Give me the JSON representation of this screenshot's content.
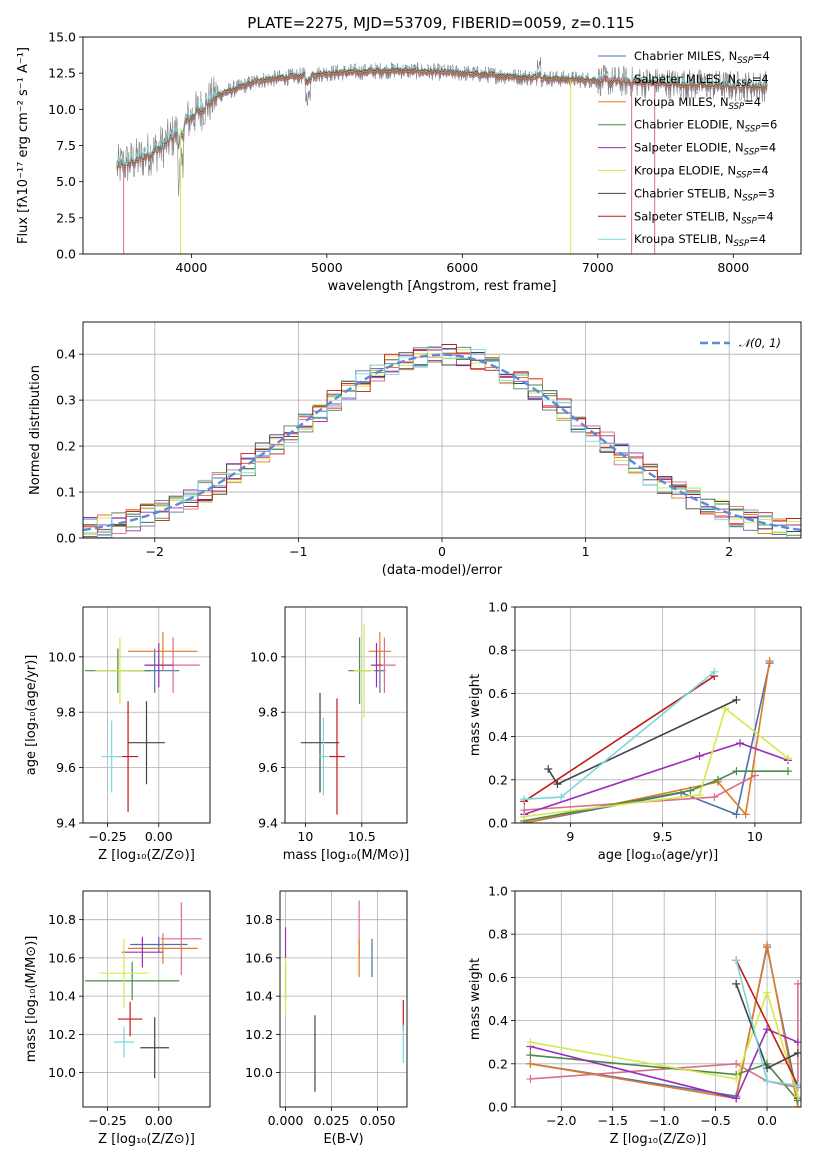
{
  "figure": {
    "title": "PLATE=2275, MJD=53709, FIBERID=0059, z=0.115"
  },
  "series": [
    {
      "name": "Chabrier MILES",
      "suffix": "=4",
      "color": "#4c72b0"
    },
    {
      "name": "Salpeter MILES",
      "suffix": "=4",
      "color": "#dd6e86"
    },
    {
      "name": "Kroupa MILES",
      "suffix": "=4",
      "color": "#e07b28"
    },
    {
      "name": "Chabrier ELODIE",
      "suffix": "=6",
      "color": "#4a8a4a"
    },
    {
      "name": "Salpeter ELODIE",
      "suffix": "=4",
      "color": "#9a2fb5"
    },
    {
      "name": "Kroupa ELODIE",
      "suffix": "=4",
      "color": "#d7e84a"
    },
    {
      "name": "Chabrier STELIB",
      "suffix": "=3",
      "color": "#444444"
    },
    {
      "name": "Salpeter STELIB",
      "suffix": "=4",
      "color": "#c21a1a"
    },
    {
      "name": "Kroupa STELIB",
      "suffix": "=4",
      "color": "#79d8db"
    }
  ],
  "chart_data": [
    {
      "id": "spectrum",
      "type": "line",
      "xlabel": "wavelength [Angstrom, rest frame]",
      "ylabel": "Flux [fλ10⁻¹⁷ erg cm⁻² s⁻¹ A⁻¹]",
      "xlim": [
        3200,
        8500
      ],
      "ylim": [
        0,
        15
      ],
      "xticks": [
        4000,
        5000,
        6000,
        7000,
        8000
      ],
      "yticks": [
        0.0,
        2.5,
        5.0,
        7.5,
        10.0,
        12.5,
        15.0
      ],
      "legend": "upper-right",
      "data_color": "#7f7f7f",
      "data_range": [
        3450,
        8250
      ],
      "continuum": [
        [
          3450,
          6.0
        ],
        [
          3600,
          6.5
        ],
        [
          3800,
          7.5
        ],
        [
          4000,
          9.5
        ],
        [
          4200,
          11.0
        ],
        [
          4500,
          12.0
        ],
        [
          5000,
          12.5
        ],
        [
          5500,
          12.7
        ],
        [
          6000,
          12.5
        ],
        [
          6500,
          12.2
        ],
        [
          7000,
          12.0
        ],
        [
          7500,
          11.8
        ],
        [
          8000,
          11.6
        ],
        [
          8250,
          11.6
        ]
      ],
      "model_cutoffs": [
        {
          "wavelength": 3920,
          "series": "Kroupa ELODIE"
        },
        {
          "wavelength": 3500,
          "series": "Salpeter MILES"
        },
        {
          "wavelength": 6800,
          "series": "Kroupa ELODIE"
        },
        {
          "wavelength": 7250,
          "series": "Salpeter MILES"
        },
        {
          "wavelength": 7420,
          "series": "Salpeter MILES"
        }
      ],
      "grid": false
    },
    {
      "id": "residuals",
      "type": "step-histogram",
      "xlabel": "(data-model)/error",
      "ylabel": "Normed distribution",
      "xlim": [
        -2.5,
        2.5
      ],
      "ylim": [
        0,
        0.47
      ],
      "xticks": [
        -2,
        -1,
        0,
        1,
        2
      ],
      "xtick_labels": [
        "−2",
        "−1",
        "0",
        "1",
        "2"
      ],
      "yticks": [
        0.0,
        0.1,
        0.2,
        0.3,
        0.4
      ],
      "reference": {
        "label": "𝒩(0, 1)",
        "mu": 0,
        "sigma": 1,
        "color": "#5b8bd6"
      },
      "bin_width": 0.1,
      "grid": true,
      "legend": "upper-right"
    },
    {
      "id": "age-vs-Z",
      "type": "errorbar",
      "xlabel": "Z [log₁₀(Z/Z⊙)]",
      "ylabel": "age  [log₁₀(age/yr)]",
      "xlim": [
        -0.37,
        0.25
      ],
      "ylim": [
        9.4,
        10.18
      ],
      "xticks": [
        -0.25,
        0.0
      ],
      "xtick_labels": [
        "−0.25",
        "0.00"
      ],
      "yticks": [
        9.4,
        9.6,
        9.8,
        10.0
      ],
      "grid": true,
      "points": [
        {
          "series": "Chabrier MILES",
          "x": -0.02,
          "y": 9.95,
          "xerr": 0.12,
          "yerr": 0.08
        },
        {
          "series": "Salpeter MILES",
          "x": 0.07,
          "y": 9.97,
          "xerr": 0.13,
          "yerr": 0.1
        },
        {
          "series": "Kroupa MILES",
          "x": 0.02,
          "y": 10.02,
          "xerr": 0.17,
          "yerr": 0.07
        },
        {
          "series": "Chabrier ELODIE",
          "x": -0.2,
          "y": 9.95,
          "xerr": 0.16,
          "yerr": 0.08
        },
        {
          "series": "Salpeter ELODIE",
          "x": 0.0,
          "y": 9.97,
          "xerr": 0.07,
          "yerr": 0.08
        },
        {
          "series": "Kroupa ELODIE",
          "x": -0.19,
          "y": 9.95,
          "xerr": 0.12,
          "yerr": 0.12
        },
        {
          "series": "Chabrier STELIB",
          "x": -0.06,
          "y": 9.69,
          "xerr": 0.09,
          "yerr": 0.15
        },
        {
          "series": "Salpeter STELIB",
          "x": -0.15,
          "y": 9.64,
          "xerr": 0.05,
          "yerr": 0.2
        },
        {
          "series": "Kroupa STELIB",
          "x": -0.23,
          "y": 9.64,
          "xerr": 0.05,
          "yerr": 0.13
        }
      ]
    },
    {
      "id": "age-vs-mass",
      "type": "errorbar",
      "xlabel": "mass [log₁₀(M/M⊙)]",
      "ylabel": "",
      "xlim": [
        9.82,
        10.9
      ],
      "ylim": [
        9.4,
        10.18
      ],
      "xticks": [
        10.0,
        10.5
      ],
      "yticks": [
        9.4,
        9.6,
        9.8,
        10.0
      ],
      "grid": true,
      "points": [
        {
          "series": "Chabrier MILES",
          "x": 10.66,
          "y": 9.95,
          "xerr": 0.05,
          "yerr": 0.08
        },
        {
          "series": "Salpeter MILES",
          "x": 10.7,
          "y": 9.97,
          "xerr": 0.1,
          "yerr": 0.1
        },
        {
          "series": "Kroupa MILES",
          "x": 10.66,
          "y": 10.02,
          "xerr": 0.1,
          "yerr": 0.07
        },
        {
          "series": "Chabrier ELODIE",
          "x": 10.48,
          "y": 9.95,
          "xerr": 0.1,
          "yerr": 0.12
        },
        {
          "series": "Salpeter ELODIE",
          "x": 10.63,
          "y": 9.97,
          "xerr": 0.05,
          "yerr": 0.08
        },
        {
          "series": "Kroupa ELODIE",
          "x": 10.52,
          "y": 9.95,
          "xerr": 0.09,
          "yerr": 0.17
        },
        {
          "series": "Chabrier STELIB",
          "x": 10.13,
          "y": 9.69,
          "xerr": 0.17,
          "yerr": 0.18
        },
        {
          "series": "Salpeter STELIB",
          "x": 10.28,
          "y": 9.64,
          "xerr": 0.07,
          "yerr": 0.21
        },
        {
          "series": "Kroupa STELIB",
          "x": 10.16,
          "y": 9.64,
          "xerr": 0.04,
          "yerr": 0.14
        }
      ]
    },
    {
      "id": "weight-vs-age",
      "type": "line",
      "xlabel": "age  [log₁₀(age/yr)]",
      "ylabel": "mass weight",
      "xlim": [
        8.7,
        10.25
      ],
      "ylim": [
        0,
        1.0
      ],
      "xticks": [
        9.0,
        9.5,
        10.0
      ],
      "yticks": [
        0.0,
        0.2,
        0.4,
        0.6,
        0.8,
        1.0
      ],
      "grid": true,
      "series_points": [
        {
          "series": "Chabrier MILES",
          "x": [
            8.75,
            9.6,
            9.9,
            10.08
          ],
          "y": [
            0.0,
            0.14,
            0.04,
            0.74
          ]
        },
        {
          "series": "Salpeter MILES",
          "x": [
            8.75,
            9.78,
            10.0
          ],
          "y": [
            0.06,
            0.12,
            0.22
          ]
        },
        {
          "series": "Kroupa MILES",
          "x": [
            8.75,
            9.8,
            9.95,
            10.08
          ],
          "y": [
            0.0,
            0.19,
            0.04,
            0.75
          ]
        },
        {
          "series": "Chabrier ELODIE",
          "x": [
            8.75,
            9.65,
            9.8,
            9.9,
            10.18
          ],
          "y": [
            0.01,
            0.15,
            0.2,
            0.24,
            0.24
          ]
        },
        {
          "series": "Salpeter ELODIE",
          "x": [
            8.75,
            9.7,
            9.92,
            10.18
          ],
          "y": [
            0.04,
            0.31,
            0.37,
            0.29
          ]
        },
        {
          "series": "Kroupa ELODIE",
          "x": [
            8.75,
            9.7,
            9.84,
            10.18
          ],
          "y": [
            0.03,
            0.13,
            0.53,
            0.3
          ]
        },
        {
          "series": "Chabrier STELIB",
          "x": [
            8.88,
            8.93,
            9.9
          ],
          "y": [
            0.25,
            0.18,
            0.57
          ]
        },
        {
          "series": "Salpeter STELIB",
          "x": [
            8.75,
            9.78
          ],
          "y": [
            0.1,
            0.68
          ]
        },
        {
          "series": "Kroupa STELIB",
          "x": [
            8.75,
            8.95,
            9.78
          ],
          "y": [
            0.11,
            0.12,
            0.7
          ]
        }
      ]
    },
    {
      "id": "mass-vs-Z",
      "type": "errorbar",
      "xlabel": "Z [log₁₀(Z/Z⊙)]",
      "ylabel": "mass [log₁₀(M/M⊙)]",
      "xlim": [
        -0.37,
        0.25
      ],
      "ylim": [
        9.82,
        10.95
      ],
      "xticks": [
        -0.25,
        0.0
      ],
      "xtick_labels": [
        "−0.25",
        "0.00"
      ],
      "yticks": [
        10.0,
        10.2,
        10.4,
        10.6,
        10.8
      ],
      "grid": true,
      "points": [
        {
          "series": "Chabrier MILES",
          "x": 0.0,
          "y": 10.67,
          "xerr": 0.14,
          "yerr": 0.04
        },
        {
          "series": "Salpeter MILES",
          "x": 0.11,
          "y": 10.7,
          "xerr": 0.1,
          "yerr": 0.19
        },
        {
          "series": "Kroupa MILES",
          "x": 0.02,
          "y": 10.65,
          "xerr": 0.17,
          "yerr": 0.08
        },
        {
          "series": "Chabrier ELODIE",
          "x": -0.13,
          "y": 10.48,
          "xerr": 0.23,
          "yerr": 0.1
        },
        {
          "series": "Salpeter ELODIE",
          "x": -0.08,
          "y": 10.63,
          "xerr": 0.1,
          "yerr": 0.08
        },
        {
          "series": "Kroupa ELODIE",
          "x": -0.17,
          "y": 10.52,
          "xerr": 0.12,
          "yerr": 0.18
        },
        {
          "series": "Chabrier STELIB",
          "x": -0.02,
          "y": 10.13,
          "xerr": 0.07,
          "yerr": 0.16
        },
        {
          "series": "Salpeter STELIB",
          "x": -0.14,
          "y": 10.28,
          "xerr": 0.06,
          "yerr": 0.09
        },
        {
          "series": "Kroupa STELIB",
          "x": -0.17,
          "y": 10.16,
          "xerr": 0.05,
          "yerr": 0.08
        }
      ]
    },
    {
      "id": "mass-vs-ebv",
      "type": "errorbar",
      "xlabel": "E(B-V)",
      "ylabel": "",
      "xlim": [
        -0.003,
        0.066
      ],
      "ylim": [
        9.82,
        10.95
      ],
      "xticks": [
        0.0,
        0.025,
        0.05
      ],
      "xtick_labels": [
        "0.000",
        "0.025",
        "0.050"
      ],
      "yticks": [
        10.0,
        10.2,
        10.4,
        10.6,
        10.8
      ],
      "grid": true,
      "points": [
        {
          "series": "Chabrier MILES",
          "x": 0.047,
          "y": 10.6,
          "xerr": 0,
          "yerr": 0.1
        },
        {
          "series": "Salpeter MILES",
          "x": 0.04,
          "y": 10.75,
          "xerr": 0,
          "yerr": 0.15
        },
        {
          "series": "Kroupa MILES",
          "x": 0.04,
          "y": 10.6,
          "xerr": 0,
          "yerr": 0.1
        },
        {
          "series": "Chabrier ELODIE",
          "x": 0.0,
          "y": 10.48,
          "xerr": 0,
          "yerr": 0.1
        },
        {
          "series": "Salpeter ELODIE",
          "x": 0.0,
          "y": 10.68,
          "xerr": 0,
          "yerr": 0.08
        },
        {
          "series": "Kroupa ELODIE",
          "x": 0.0,
          "y": 10.45,
          "xerr": 0,
          "yerr": 0.15
        },
        {
          "series": "Chabrier STELIB",
          "x": 0.016,
          "y": 10.1,
          "xerr": 0,
          "yerr": 0.2
        },
        {
          "series": "Salpeter STELIB",
          "x": 0.064,
          "y": 10.3,
          "xerr": 0,
          "yerr": 0.08
        },
        {
          "series": "Kroupa STELIB",
          "x": 0.064,
          "y": 10.15,
          "xerr": 0,
          "yerr": 0.1
        }
      ]
    },
    {
      "id": "weight-vs-Z",
      "type": "line",
      "xlabel": "Z [log₁₀(Z/Z⊙)]",
      "ylabel": "mass weight",
      "xlim": [
        -2.45,
        0.33
      ],
      "ylim": [
        0,
        1.0
      ],
      "xticks": [
        -2.0,
        -1.5,
        -1.0,
        -0.5,
        0.0
      ],
      "xtick_labels": [
        "−2.0",
        "−1.5",
        "−1.0",
        "−0.5",
        "0.0"
      ],
      "yticks": [
        0.0,
        0.2,
        0.4,
        0.6,
        0.8,
        1.0
      ],
      "grid": true,
      "series_points": [
        {
          "series": "Chabrier MILES",
          "x": [
            -2.3,
            -0.3,
            0.0,
            0.3
          ],
          "y": [
            0.2,
            0.05,
            0.74,
            0.04
          ]
        },
        {
          "series": "Salpeter MILES",
          "x": [
            -2.3,
            -0.3,
            0.0,
            0.3,
            0.3
          ],
          "y": [
            0.13,
            0.2,
            0.12,
            0.09,
            0.57
          ]
        },
        {
          "series": "Kroupa MILES",
          "x": [
            -2.3,
            -0.3,
            0.0,
            0.3
          ],
          "y": [
            0.2,
            0.04,
            0.75,
            0.0
          ]
        },
        {
          "series": "Chabrier ELODIE",
          "x": [
            -2.3,
            -0.3,
            0.0,
            0.3
          ],
          "y": [
            0.24,
            0.15,
            0.2,
            0.03
          ]
        },
        {
          "series": "Salpeter ELODIE",
          "x": [
            -2.3,
            -0.3,
            0.0,
            0.3
          ],
          "y": [
            0.28,
            0.04,
            0.36,
            0.3
          ]
        },
        {
          "series": "Kroupa ELODIE",
          "x": [
            -2.3,
            -0.3,
            0.0,
            0.3
          ],
          "y": [
            0.3,
            0.13,
            0.53,
            0.05
          ]
        },
        {
          "series": "Chabrier STELIB",
          "x": [
            -0.3,
            0.0,
            0.3
          ],
          "y": [
            0.57,
            0.18,
            0.25
          ]
        },
        {
          "series": "Salpeter STELIB",
          "x": [
            -0.3,
            0.3
          ],
          "y": [
            0.68,
            0.1
          ]
        },
        {
          "series": "Kroupa STELIB",
          "x": [
            -0.3,
            0.0,
            0.3
          ],
          "y": [
            0.68,
            0.12,
            0.1
          ]
        }
      ]
    }
  ]
}
